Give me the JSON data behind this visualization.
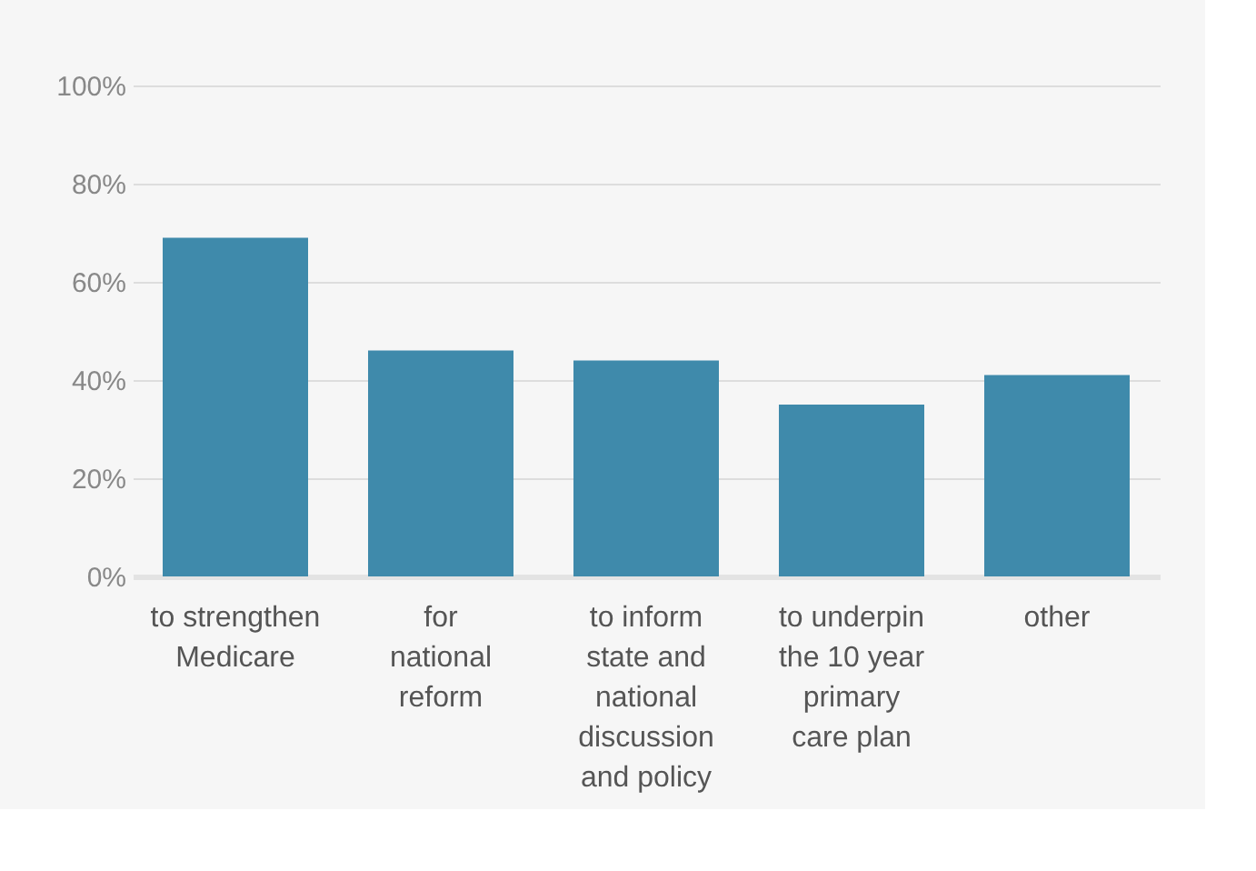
{
  "chart_data": {
    "type": "bar",
    "categories": [
      "to strengthen\nMedicare",
      "for\nnational\nreform",
      "to inform\nstate and\nnational\ndiscussion\nand policy",
      "to underpin\nthe 10 year\nprimary\ncare plan",
      "other"
    ],
    "values": [
      69,
      46,
      44,
      35,
      41
    ],
    "color": "#3f8aab",
    "ylim": [
      0,
      100
    ],
    "yticks": [
      {
        "value": 0,
        "label": "0%"
      },
      {
        "value": 20,
        "label": "20%"
      },
      {
        "value": 40,
        "label": "40%"
      },
      {
        "value": 60,
        "label": "60%"
      },
      {
        "value": 80,
        "label": "80%"
      },
      {
        "value": 100,
        "label": "100%"
      }
    ],
    "grid": "y"
  }
}
